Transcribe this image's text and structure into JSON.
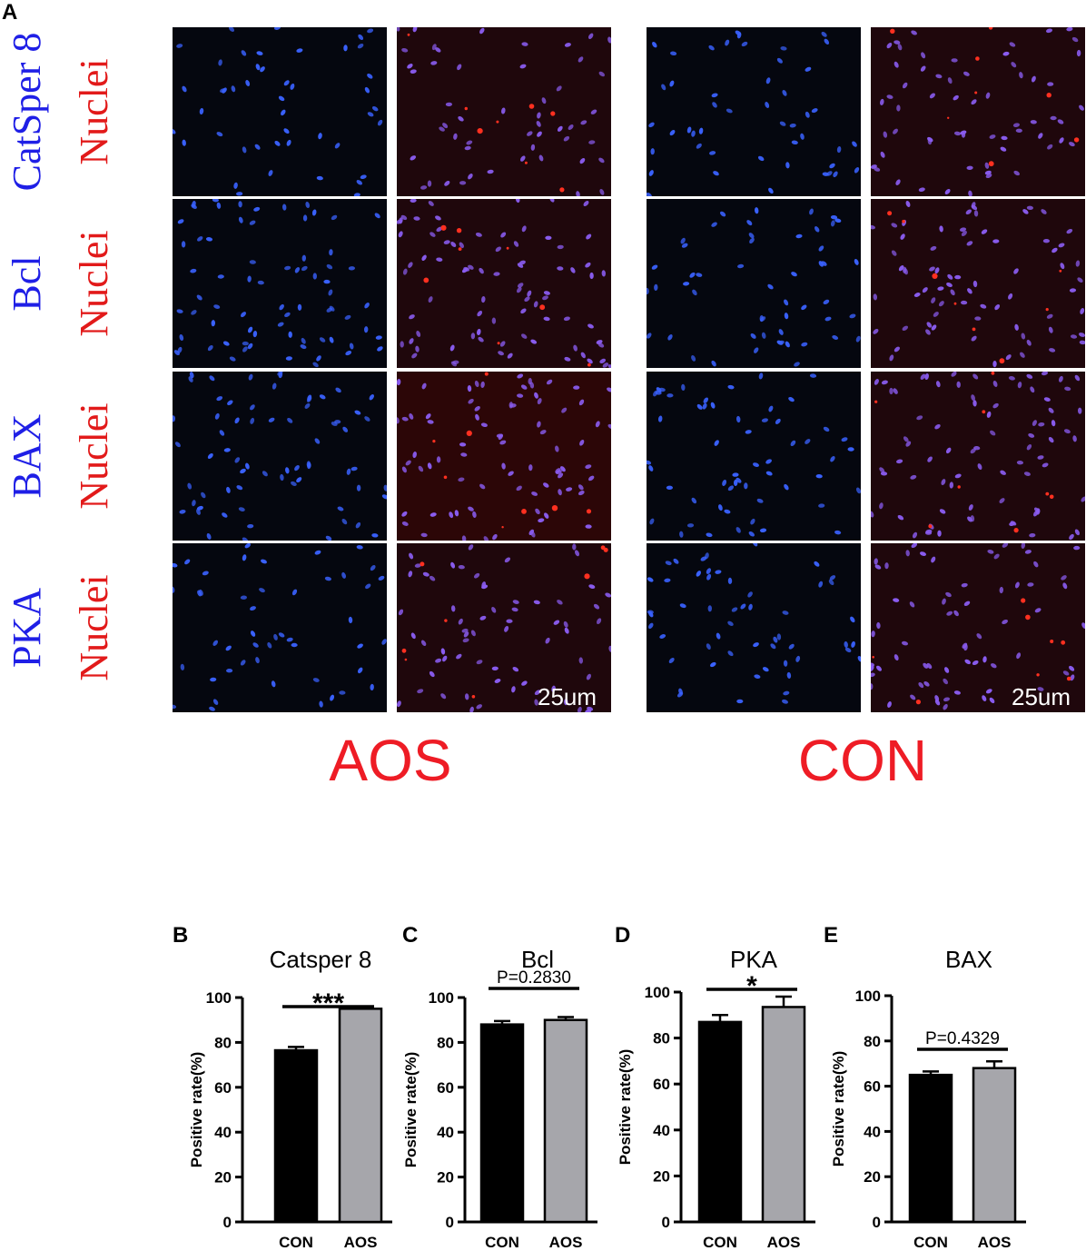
{
  "figure": {
    "panel_A_letter": "A",
    "row_labels": [
      {
        "target": "CatSper 8",
        "stain": "Nuclei"
      },
      {
        "target": "Bcl",
        "stain": "Nuclei"
      },
      {
        "target": "BAX",
        "stain": "Nuclei"
      },
      {
        "target": "PKA",
        "stain": "Nuclei"
      }
    ],
    "scale_bar_label": "25um",
    "group_labels": [
      "AOS",
      "CON"
    ],
    "colors": {
      "target_label": "#1f1fe6",
      "stain_label": "#e21a1a",
      "group_label": "#ee1c25",
      "con_bar": "#000000",
      "aos_bar": "#a6a6ab"
    }
  },
  "chart_data": [
    {
      "panel": "B",
      "type": "bar",
      "title": "Catsper 8",
      "categories": [
        "CON",
        "AOS"
      ],
      "values": [
        76.5,
        95
      ],
      "errors": [
        1.5,
        1
      ],
      "ylabel": "Positive rate(%)",
      "ylim": [
        0,
        100
      ],
      "yticks": [
        0,
        20,
        40,
        60,
        80,
        100
      ],
      "annotation": "***"
    },
    {
      "panel": "C",
      "type": "bar",
      "title": "Bcl",
      "categories": [
        "CON",
        "AOS"
      ],
      "values": [
        88,
        90
      ],
      "errors": [
        1.5,
        1.3
      ],
      "ylabel": "Positive rate(%)",
      "ylim": [
        0,
        100
      ],
      "yticks": [
        0,
        20,
        40,
        60,
        80,
        100
      ],
      "annotation": "P=0.2830"
    },
    {
      "panel": "D",
      "type": "bar",
      "title": "PKA",
      "categories": [
        "CON",
        "AOS"
      ],
      "values": [
        87,
        93.5
      ],
      "errors": [
        3,
        4.5
      ],
      "ylabel": "Positive rate(%)",
      "ylim": [
        0,
        100
      ],
      "yticks": [
        0,
        20,
        40,
        60,
        80,
        100
      ],
      "annotation": "*"
    },
    {
      "panel": "E",
      "type": "bar",
      "title": "BAX",
      "categories": [
        "CON",
        "AOS"
      ],
      "values": [
        65,
        68
      ],
      "errors": [
        1.5,
        3
      ],
      "ylabel": "Positive rate(%)",
      "ylim": [
        0,
        100
      ],
      "yticks": [
        0,
        20,
        40,
        60,
        80,
        100
      ],
      "annotation": "P=0.4329"
    }
  ]
}
